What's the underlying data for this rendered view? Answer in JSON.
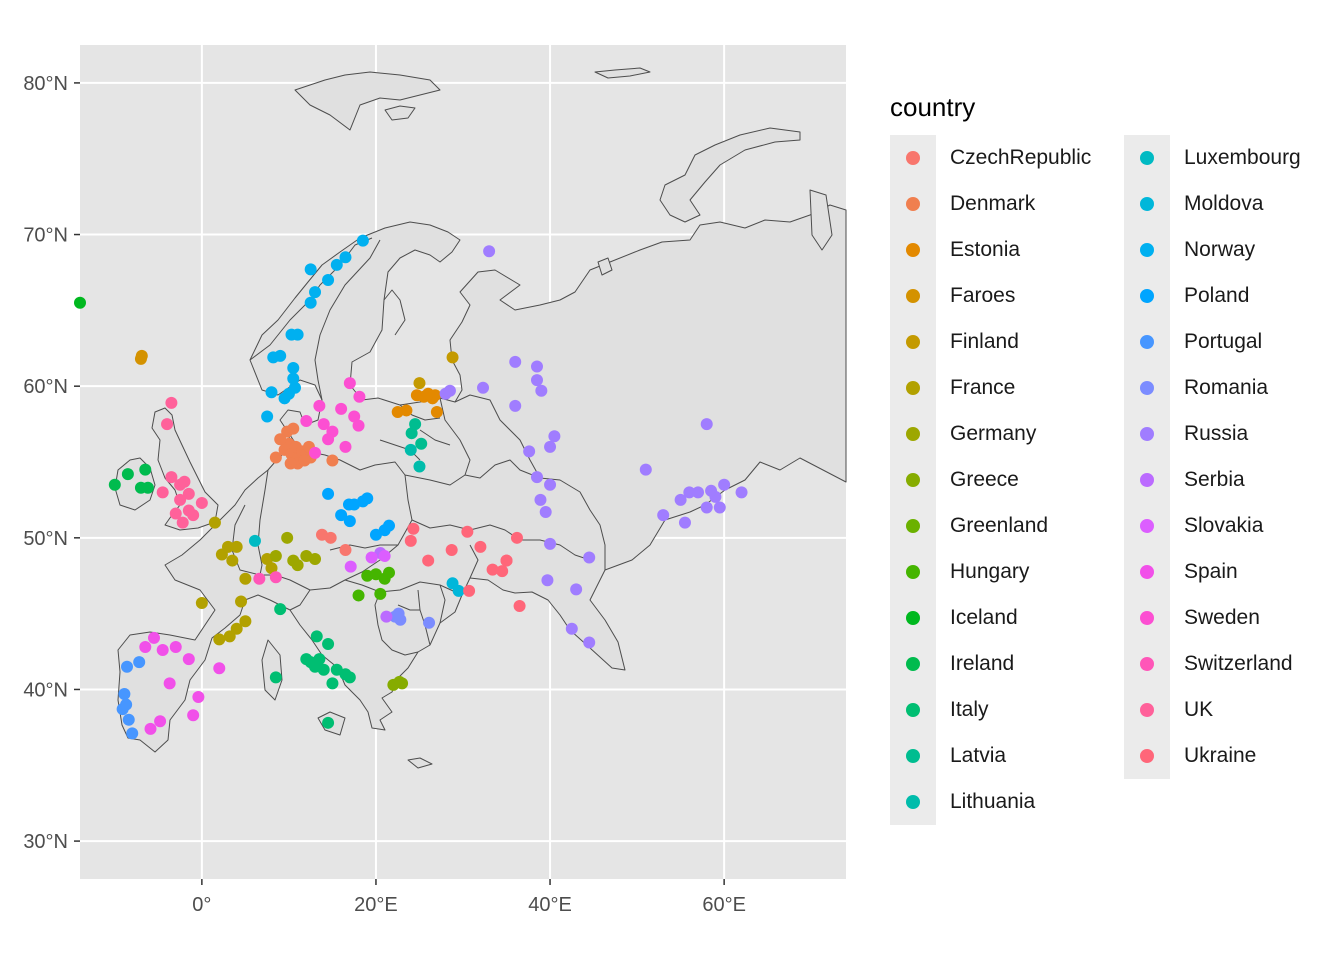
{
  "map": {
    "x_axis_labels": [
      "0°",
      "20°E",
      "40°E",
      "60°E"
    ],
    "y_axis_labels": [
      "30°N",
      "40°N",
      "50°N",
      "60°N",
      "70°N",
      "80°N"
    ],
    "panel_background": "#e5e5e5",
    "land_fill": "#e0e0e0",
    "border_color": "#4d4d4d"
  },
  "legend": {
    "title": "country",
    "items": [
      {
        "label": "CzechRepublic",
        "color": "#F8766D"
      },
      {
        "label": "Denmark",
        "color": "#F07F4F"
      },
      {
        "label": "Estonia",
        "color": "#E38900"
      },
      {
        "label": "Faroes",
        "color": "#D49200"
      },
      {
        "label": "Finland",
        "color": "#C49A00"
      },
      {
        "label": "France",
        "color": "#B2A100"
      },
      {
        "label": "Germany",
        "color": "#9DA700"
      },
      {
        "label": "Greece",
        "color": "#86AC00"
      },
      {
        "label": "Greenland",
        "color": "#6BB100"
      },
      {
        "label": "Hungary",
        "color": "#45B500"
      },
      {
        "label": "Iceland",
        "color": "#00B81F"
      },
      {
        "label": "Ireland",
        "color": "#00BB4E"
      },
      {
        "label": "Italy",
        "color": "#00BE72"
      },
      {
        "label": "Latvia",
        "color": "#00BD90"
      },
      {
        "label": "Lithuania",
        "color": "#00BCAB"
      },
      {
        "label": "Luxembourg",
        "color": "#00BAC3"
      },
      {
        "label": "Moldova",
        "color": "#00B7DA"
      },
      {
        "label": "Norway",
        "color": "#00B0F0"
      },
      {
        "label": "Poland",
        "color": "#00A5FF"
      },
      {
        "label": "Portugal",
        "color": "#4796FF"
      },
      {
        "label": "Romania",
        "color": "#7B8CFF"
      },
      {
        "label": "Russia",
        "color": "#A07DFF"
      },
      {
        "label": "Serbia",
        "color": "#BB6BFF"
      },
      {
        "label": "Slovakia",
        "color": "#DC5EFF"
      },
      {
        "label": "Spain",
        "color": "#F150E9"
      },
      {
        "label": "Sweden",
        "color": "#FC4FD2"
      },
      {
        "label": "Switzerland",
        "color": "#FF56B8"
      },
      {
        "label": "UK",
        "color": "#FF619A"
      },
      {
        "label": "Ukraine",
        "color": "#FF6679"
      }
    ]
  },
  "chart_data": {
    "type": "scatter",
    "xlabel": "",
    "ylabel": "",
    "xlim": [
      -14,
      74
    ],
    "ylim": [
      27.5,
      82.5
    ],
    "x_ticks": [
      0,
      20,
      40,
      60
    ],
    "y_ticks": [
      30,
      40,
      50,
      60,
      70,
      80
    ],
    "grid": true,
    "legend_position": "right",
    "series": [
      {
        "name": "CzechRepublic",
        "points": [
          [
            13.8,
            50.2
          ],
          [
            14.8,
            50.0
          ],
          [
            16.5,
            49.2
          ]
        ]
      },
      {
        "name": "Denmark",
        "points": [
          [
            8.5,
            55.3
          ],
          [
            9.5,
            55.8
          ],
          [
            10.0,
            56.2
          ],
          [
            10.3,
            55.5
          ],
          [
            10.8,
            56.0
          ],
          [
            11.0,
            55.2
          ],
          [
            11.5,
            55.7
          ],
          [
            12.0,
            55.5
          ],
          [
            12.5,
            55.3
          ],
          [
            9.8,
            57.0
          ],
          [
            10.5,
            57.2
          ],
          [
            11.0,
            54.9
          ],
          [
            15.0,
            55.1
          ],
          [
            9.0,
            56.5
          ],
          [
            12.3,
            56.0
          ],
          [
            10.2,
            54.9
          ],
          [
            11.8,
            55.1
          ]
        ]
      },
      {
        "name": "Estonia",
        "points": [
          [
            23.5,
            58.4
          ],
          [
            24.7,
            59.4
          ],
          [
            25.5,
            59.3
          ],
          [
            26.5,
            59.2
          ],
          [
            27.0,
            58.3
          ],
          [
            26.8,
            59.4
          ],
          [
            26.0,
            59.5
          ],
          [
            22.5,
            58.3
          ]
        ]
      },
      {
        "name": "Faroes",
        "points": [
          [
            -7.0,
            61.8
          ],
          [
            -6.9,
            62.0
          ]
        ]
      },
      {
        "name": "Finland",
        "points": [
          [
            25.0,
            60.2
          ],
          [
            28.8,
            61.9
          ]
        ]
      },
      {
        "name": "France",
        "points": [
          [
            2.3,
            48.9
          ],
          [
            3.0,
            49.4
          ],
          [
            4.0,
            49.4
          ],
          [
            5.0,
            47.3
          ],
          [
            4.5,
            45.8
          ],
          [
            3.2,
            43.5
          ],
          [
            2.0,
            43.3
          ],
          [
            4.0,
            44.0
          ],
          [
            5.0,
            44.5
          ],
          [
            3.5,
            48.5
          ],
          [
            1.5,
            51.0
          ],
          [
            0.0,
            45.7
          ],
          [
            7.5,
            48.6
          ],
          [
            8.0,
            48.0
          ]
        ]
      },
      {
        "name": "Germany",
        "points": [
          [
            9.8,
            50.0
          ],
          [
            11.0,
            48.2
          ],
          [
            12.0,
            48.8
          ],
          [
            13.0,
            48.6
          ],
          [
            10.5,
            48.5
          ],
          [
            8.5,
            48.8
          ]
        ]
      },
      {
        "name": "Greece",
        "points": [
          [
            22.0,
            40.3
          ],
          [
            22.7,
            40.5
          ],
          [
            23.0,
            40.4
          ]
        ]
      },
      {
        "name": "Greenland",
        "points": [
          [
            -14.5,
            65.5
          ]
        ]
      },
      {
        "name": "Hungary",
        "points": [
          [
            19.0,
            47.5
          ],
          [
            20.0,
            47.6
          ],
          [
            21.0,
            47.3
          ],
          [
            20.5,
            46.3
          ],
          [
            18.0,
            46.2
          ],
          [
            21.5,
            47.7
          ]
        ]
      },
      {
        "name": "Iceland",
        "points": [
          [
            -14.0,
            65.5
          ]
        ]
      },
      {
        "name": "Ireland",
        "points": [
          [
            -6.2,
            53.3
          ],
          [
            -8.5,
            54.2
          ],
          [
            -10.0,
            53.5
          ],
          [
            -6.5,
            54.5
          ],
          [
            -7.0,
            53.3
          ]
        ]
      },
      {
        "name": "Italy",
        "points": [
          [
            12.0,
            42.0
          ],
          [
            12.5,
            41.8
          ],
          [
            13.0,
            41.5
          ],
          [
            13.5,
            42.0
          ],
          [
            14.0,
            41.3
          ],
          [
            13.2,
            43.5
          ],
          [
            14.5,
            43.0
          ],
          [
            16.5,
            41.0
          ],
          [
            17.0,
            40.8
          ],
          [
            15.5,
            41.3
          ],
          [
            15.0,
            40.4
          ],
          [
            14.5,
            37.8
          ],
          [
            9.0,
            45.3
          ],
          [
            8.5,
            40.8
          ]
        ]
      },
      {
        "name": "Latvia",
        "points": [
          [
            24.1,
            56.9
          ],
          [
            25.2,
            56.2
          ],
          [
            24.5,
            57.5
          ]
        ]
      },
      {
        "name": "Lithuania",
        "points": [
          [
            24.0,
            55.8
          ],
          [
            25.0,
            54.7
          ]
        ]
      },
      {
        "name": "Luxembourg",
        "points": [
          [
            6.1,
            49.8
          ]
        ]
      },
      {
        "name": "Moldova",
        "points": [
          [
            28.8,
            47.0
          ],
          [
            29.5,
            46.5
          ]
        ]
      },
      {
        "name": "Norway",
        "points": [
          [
            10.7,
            59.9
          ],
          [
            10.0,
            59.5
          ],
          [
            7.5,
            58.0
          ],
          [
            8.0,
            59.6
          ],
          [
            9.5,
            59.2
          ],
          [
            10.5,
            60.5
          ],
          [
            10.3,
            63.4
          ],
          [
            11.0,
            63.4
          ],
          [
            12.5,
            65.5
          ],
          [
            13.0,
            66.2
          ],
          [
            14.5,
            67.0
          ],
          [
            15.5,
            68.0
          ],
          [
            16.5,
            68.5
          ],
          [
            18.5,
            69.6
          ],
          [
            12.5,
            67.7
          ],
          [
            8.2,
            61.9
          ],
          [
            9.0,
            62.0
          ],
          [
            10.5,
            61.2
          ]
        ]
      },
      {
        "name": "Poland",
        "points": [
          [
            14.5,
            52.9
          ],
          [
            16.9,
            52.2
          ],
          [
            17.5,
            52.2
          ],
          [
            18.5,
            52.4
          ],
          [
            19.0,
            52.6
          ],
          [
            20.0,
            50.2
          ],
          [
            21.0,
            50.5
          ],
          [
            21.5,
            50.8
          ],
          [
            17.0,
            51.1
          ],
          [
            16.0,
            51.5
          ]
        ]
      },
      {
        "name": "Portugal",
        "points": [
          [
            -8.6,
            41.5
          ],
          [
            -9.1,
            38.7
          ],
          [
            -8.9,
            39.7
          ],
          [
            -8.4,
            38.0
          ],
          [
            -8.0,
            37.1
          ],
          [
            -8.7,
            39.0
          ],
          [
            -7.2,
            41.8
          ]
        ]
      },
      {
        "name": "Romania",
        "points": [
          [
            22.2,
            44.8
          ],
          [
            22.6,
            45.0
          ],
          [
            22.8,
            44.6
          ],
          [
            26.1,
            44.4
          ]
        ]
      },
      {
        "name": "Russia",
        "points": [
          [
            33.0,
            68.9
          ],
          [
            37.6,
            55.7
          ],
          [
            40.0,
            56.0
          ],
          [
            40.5,
            56.7
          ],
          [
            38.5,
            61.3
          ],
          [
            38.5,
            60.4
          ],
          [
            39.0,
            59.7
          ],
          [
            36.0,
            61.6
          ],
          [
            32.3,
            59.9
          ],
          [
            36.0,
            58.7
          ],
          [
            38.5,
            54.0
          ],
          [
            40.0,
            53.5
          ],
          [
            39.5,
            51.7
          ],
          [
            38.9,
            52.5
          ],
          [
            40.0,
            49.6
          ],
          [
            39.7,
            47.2
          ],
          [
            44.5,
            48.7
          ],
          [
            43.0,
            46.6
          ],
          [
            42.5,
            44.0
          ],
          [
            44.5,
            43.1
          ],
          [
            51.0,
            54.5
          ],
          [
            53.0,
            51.5
          ],
          [
            55.0,
            52.5
          ],
          [
            56.0,
            53.0
          ],
          [
            57.0,
            53.0
          ],
          [
            58.0,
            52.0
          ],
          [
            59.0,
            52.7
          ],
          [
            60.0,
            53.5
          ],
          [
            62.0,
            53.0
          ],
          [
            58.0,
            57.5
          ],
          [
            28.0,
            59.5
          ],
          [
            28.5,
            59.7
          ],
          [
            55.5,
            51.0
          ],
          [
            59.5,
            52.0
          ],
          [
            58.5,
            53.1
          ]
        ]
      },
      {
        "name": "Serbia",
        "points": [
          [
            20.5,
            49.0
          ],
          [
            21.2,
            44.8
          ]
        ]
      },
      {
        "name": "Slovakia",
        "points": [
          [
            17.1,
            48.1
          ],
          [
            19.5,
            48.7
          ],
          [
            21.0,
            48.8
          ]
        ]
      },
      {
        "name": "Spain",
        "points": [
          [
            -3.7,
            40.4
          ],
          [
            -5.9,
            37.4
          ],
          [
            -4.5,
            42.6
          ],
          [
            -3.0,
            42.8
          ],
          [
            -1.5,
            42.0
          ],
          [
            -0.4,
            39.5
          ],
          [
            2.0,
            41.4
          ],
          [
            -5.5,
            43.4
          ],
          [
            -4.8,
            37.9
          ],
          [
            -6.5,
            42.8
          ],
          [
            -1.0,
            38.3
          ]
        ]
      },
      {
        "name": "Sweden",
        "points": [
          [
            18.1,
            59.3
          ],
          [
            16.0,
            58.5
          ],
          [
            14.0,
            57.5
          ],
          [
            17.5,
            58.0
          ],
          [
            13.5,
            58.7
          ],
          [
            12.0,
            57.7
          ],
          [
            15.0,
            57.0
          ],
          [
            14.5,
            56.5
          ],
          [
            16.5,
            56.0
          ],
          [
            13.0,
            55.6
          ],
          [
            17.0,
            60.2
          ],
          [
            18.0,
            57.4
          ]
        ]
      },
      {
        "name": "Switzerland",
        "points": [
          [
            6.6,
            47.3
          ],
          [
            8.5,
            47.4
          ]
        ]
      },
      {
        "name": "UK",
        "points": [
          [
            -3.5,
            58.9
          ],
          [
            -3.5,
            54.0
          ],
          [
            -2.5,
            53.5
          ],
          [
            -1.5,
            52.9
          ],
          [
            -2.5,
            52.5
          ],
          [
            -1.0,
            51.5
          ],
          [
            -3.0,
            51.6
          ],
          [
            -1.5,
            51.8
          ],
          [
            -4.0,
            57.5
          ],
          [
            -2.0,
            53.7
          ],
          [
            0.0,
            52.3
          ],
          [
            -2.2,
            51.0
          ],
          [
            -4.5,
            53.0
          ]
        ]
      },
      {
        "name": "Ukraine",
        "points": [
          [
            30.5,
            50.4
          ],
          [
            24.0,
            49.8
          ],
          [
            28.7,
            49.2
          ],
          [
            32.0,
            49.4
          ],
          [
            35.0,
            48.5
          ],
          [
            34.5,
            47.8
          ],
          [
            36.2,
            50.0
          ],
          [
            33.4,
            47.9
          ],
          [
            36.5,
            45.5
          ],
          [
            35.0,
            48.5
          ],
          [
            30.7,
            46.5
          ],
          [
            26.0,
            48.5
          ],
          [
            24.3,
            50.6
          ]
        ]
      }
    ]
  }
}
